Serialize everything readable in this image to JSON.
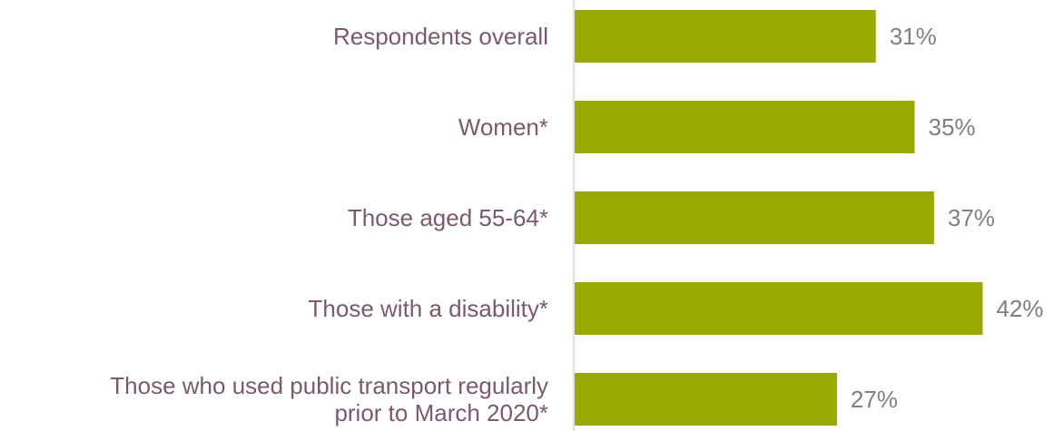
{
  "chart_data": {
    "type": "bar",
    "orientation": "horizontal",
    "categories": [
      [
        "Respondents overall"
      ],
      [
        "Women*"
      ],
      [
        "Those aged 55-64*"
      ],
      [
        "Those with a disability*"
      ],
      [
        "Those who used public transport regularly",
        "prior to March 2020*"
      ]
    ],
    "values": [
      31,
      35,
      37,
      42,
      27
    ],
    "value_labels": [
      "31%",
      "35%",
      "37%",
      "42%",
      "27%"
    ],
    "bar_color": "#9aa900",
    "axis_color": "#d9d9d9",
    "label_color": "#7a5a6e",
    "value_label_color": "#808080",
    "grid": false,
    "legend": "none"
  }
}
